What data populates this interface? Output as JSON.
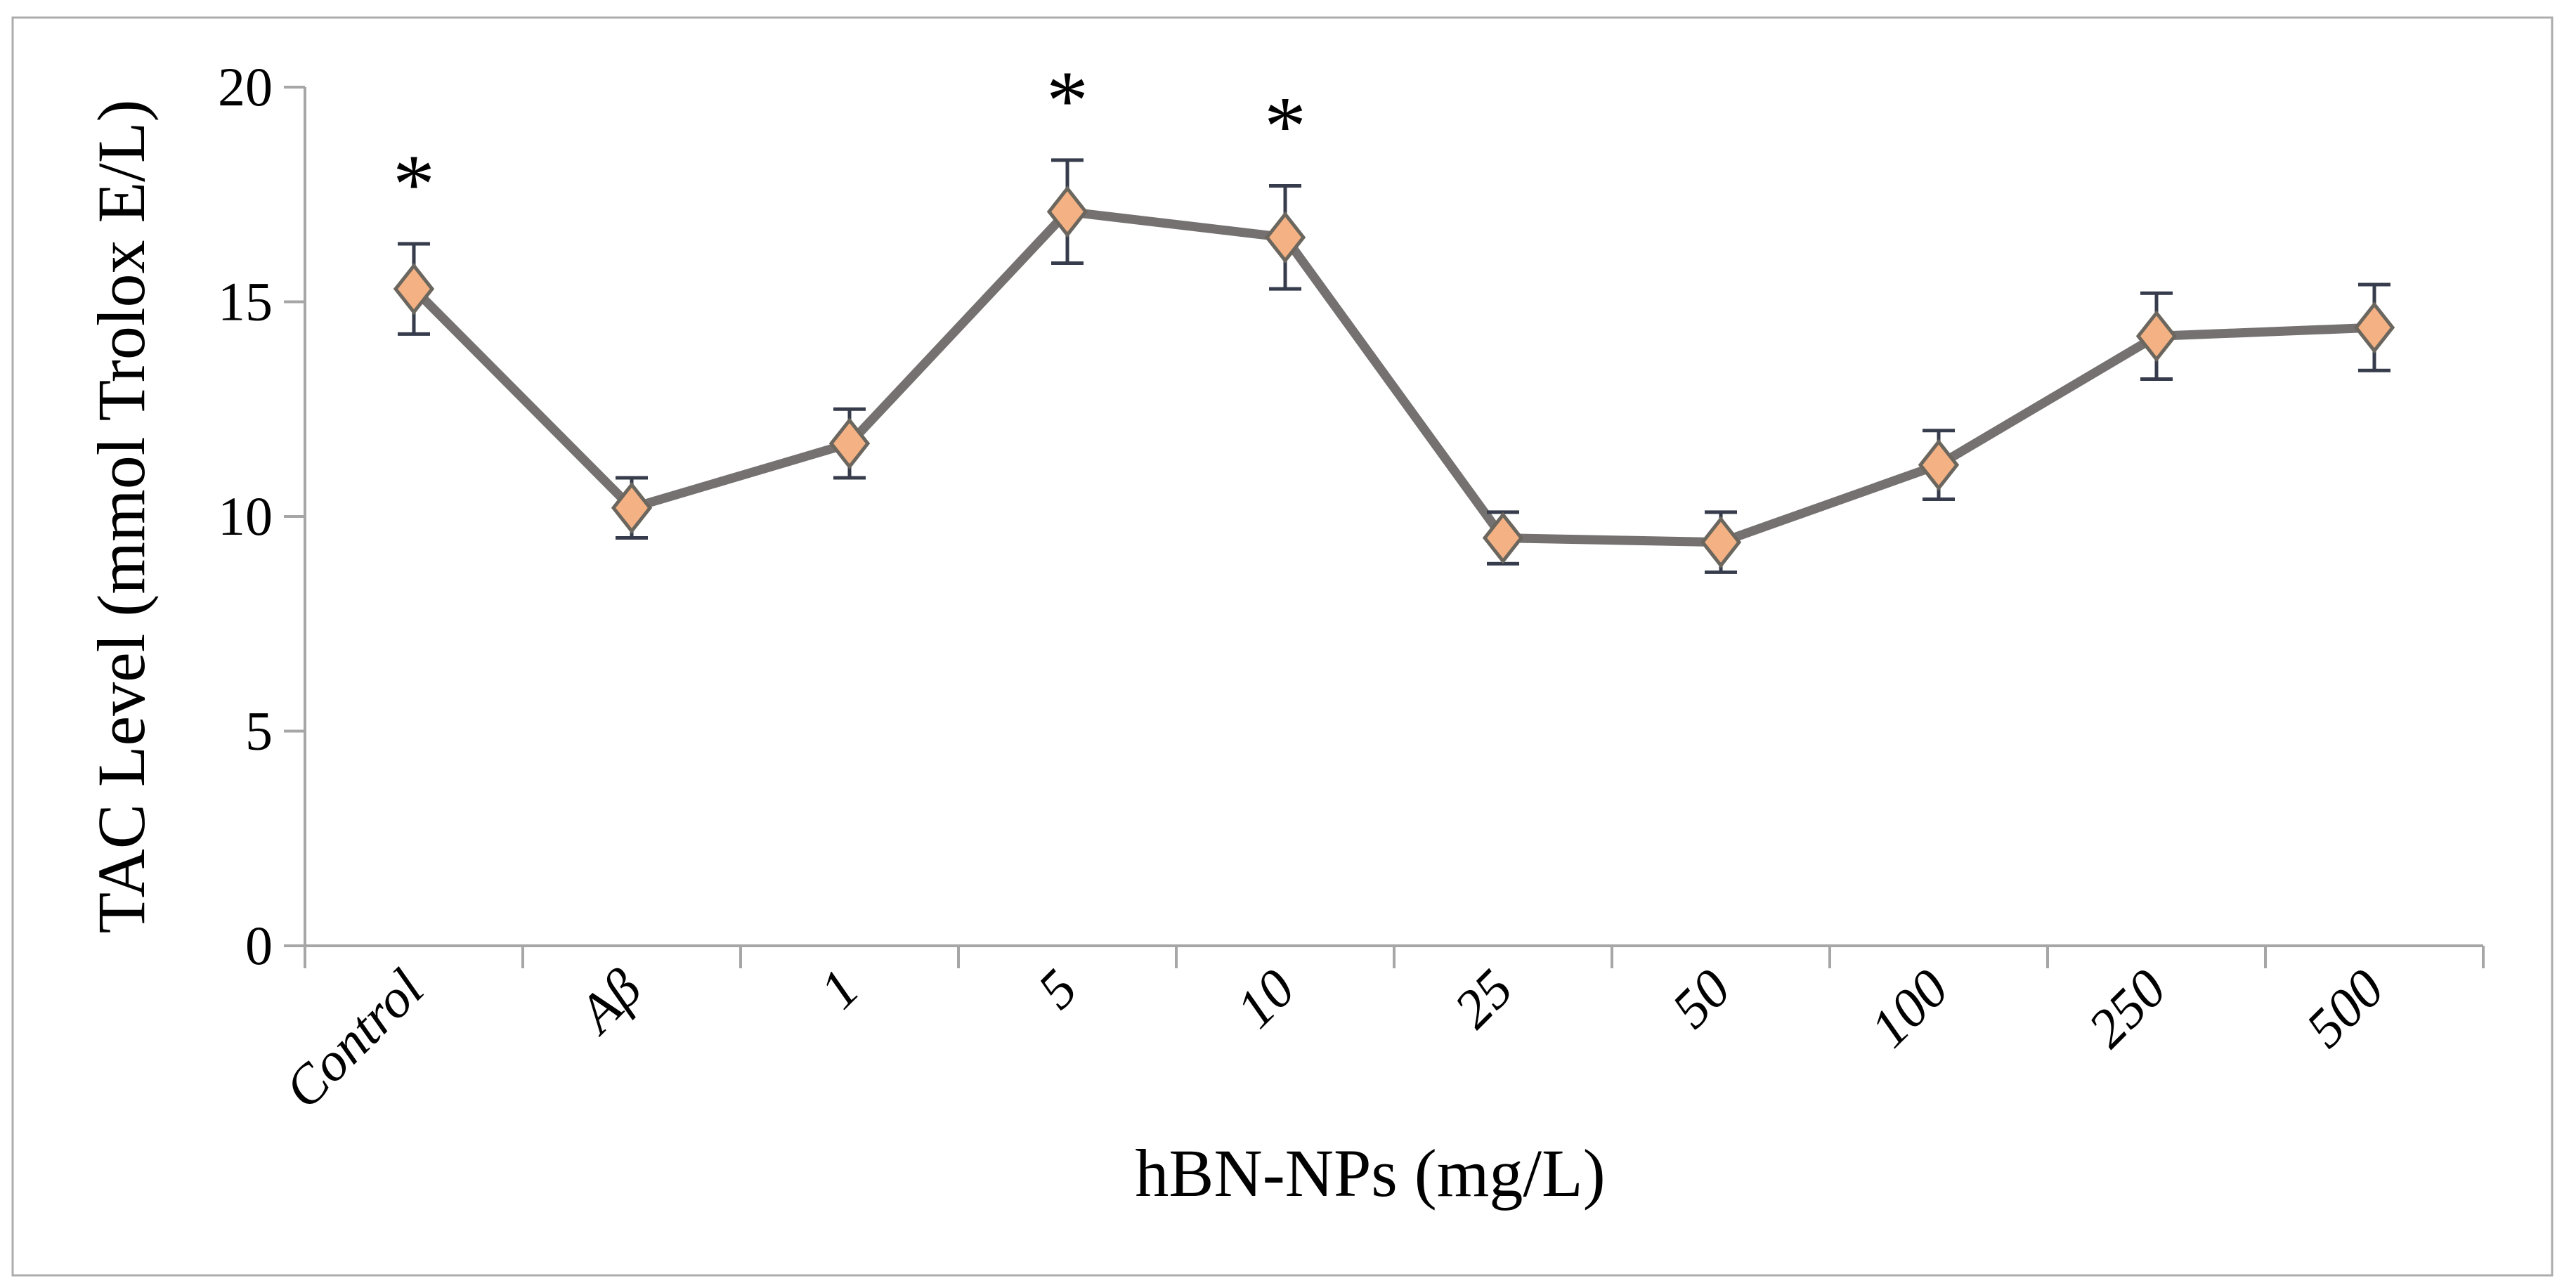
{
  "chart_data": {
    "type": "line",
    "title": "",
    "categories": [
      "Control",
      "Aβ",
      "1",
      "5",
      "10",
      "25",
      "50",
      "100",
      "250",
      "500"
    ],
    "series": [
      {
        "name": "TAC Level",
        "values": [
          15.3,
          10.2,
          11.7,
          17.1,
          16.5,
          9.5,
          9.4,
          11.2,
          14.2,
          14.4
        ],
        "error_bars": [
          1.05,
          0.7,
          0.8,
          1.2,
          1.2,
          0.6,
          0.7,
          0.8,
          1.0,
          1.0
        ]
      }
    ],
    "annotations": {
      "significance_marker": "*",
      "significant_categories": [
        "Control",
        "5",
        "10"
      ],
      "significant_indices": [
        0,
        3,
        4
      ]
    },
    "xlabel": "hBN-NPs (mg/L)",
    "ylabel": "TAC Level (mmol Trolox E/L)",
    "ylim": [
      0,
      20
    ],
    "yticks": [
      "0",
      "5",
      "10",
      "15",
      "20"
    ],
    "x_tick_rotation_deg": -45,
    "grid": false,
    "legend_position": "none",
    "marker_shape": "diamond",
    "colors": {
      "line": "#767171",
      "marker_fill": "#F4B183",
      "marker_stroke": "#6B675F",
      "error_bar": "#363C4B",
      "axis": "#A6A6A6",
      "frame_border": "#ACACAC",
      "text": "#000000",
      "background": "#FFFFFF"
    }
  }
}
